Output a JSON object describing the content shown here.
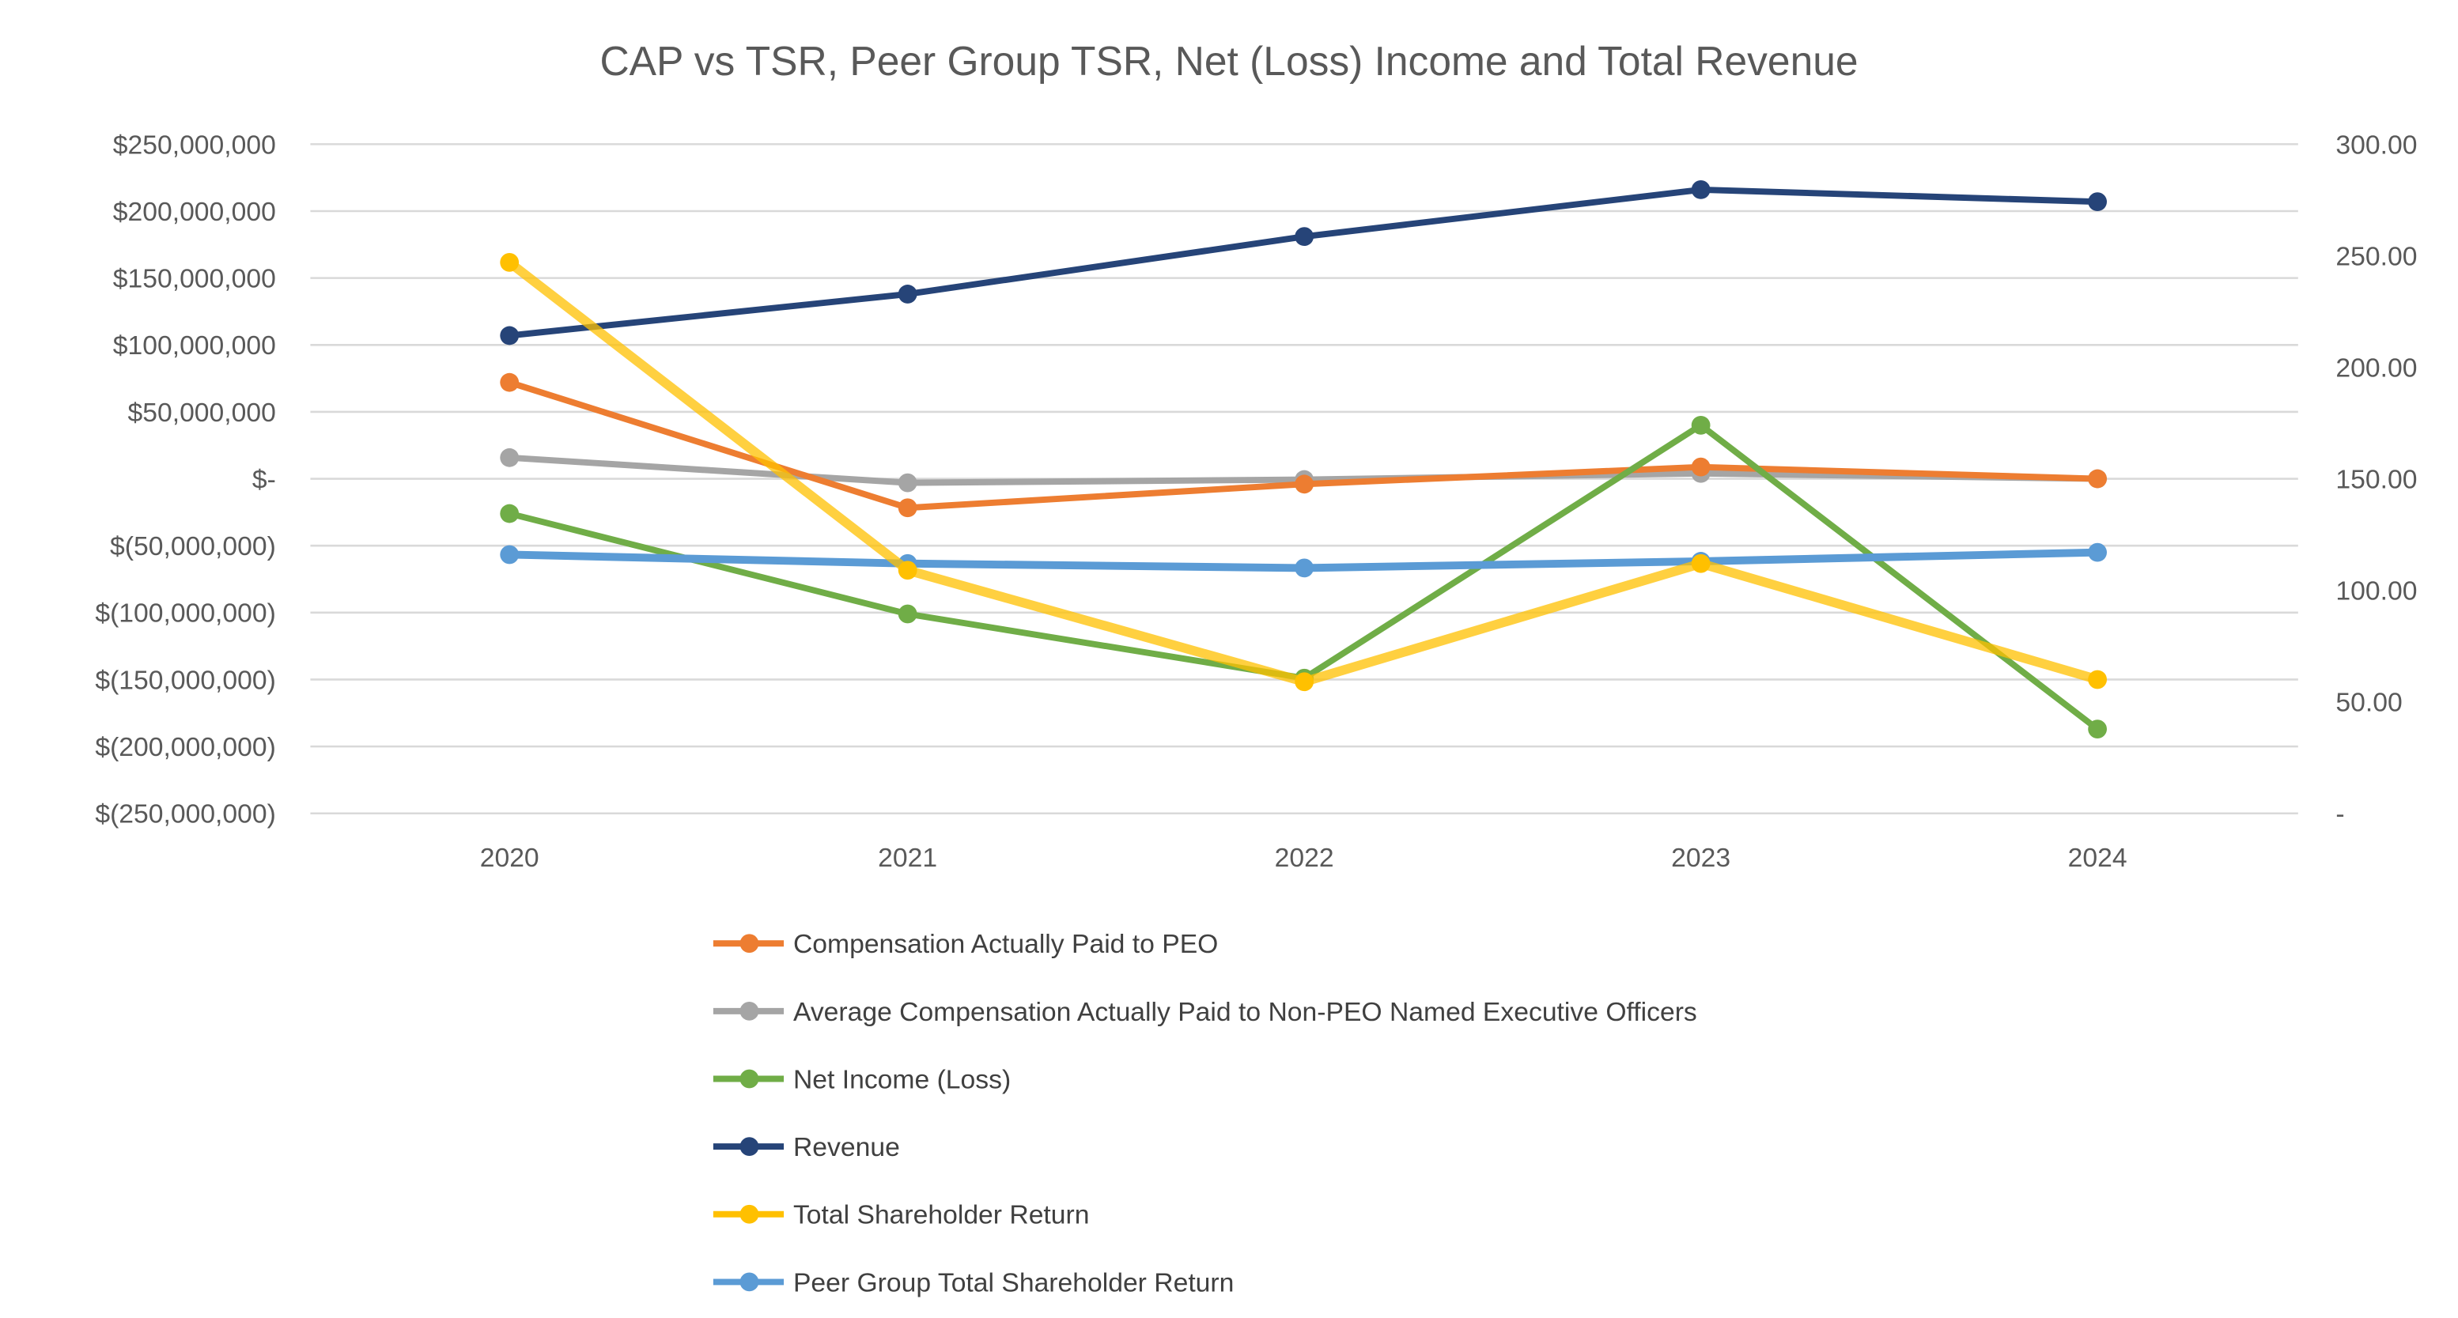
{
  "chart_data": {
    "type": "line",
    "title": "CAP vs TSR, Peer Group TSR, Net (Loss) Income and Total Revenue",
    "categories": [
      "2020",
      "2021",
      "2022",
      "2023",
      "2024"
    ],
    "y_left": {
      "range": [
        -250000000,
        250000000
      ],
      "ticks": [
        250000000,
        200000000,
        150000000,
        100000000,
        50000000,
        0,
        -50000000,
        -100000000,
        -150000000,
        -200000000,
        -250000000
      ],
      "tick_labels": [
        "$250,000,000",
        "$200,000,000",
        "$150,000,000",
        "$100,000,000",
        "$50,000,000",
        "$-",
        "$(50,000,000)",
        "$(100,000,000)",
        "$(150,000,000)",
        "$(200,000,000)",
        "$(250,000,000)"
      ]
    },
    "y_right": {
      "range": [
        0,
        300
      ],
      "ticks": [
        300,
        250,
        200,
        150,
        100,
        50,
        0
      ],
      "tick_labels": [
        "300.00",
        "250.00",
        "200.00",
        "150.00",
        "100.00",
        "50.00",
        "-"
      ]
    },
    "grid": true,
    "legend_position": "bottom",
    "series": [
      {
        "name": "Compensation Actually Paid to PEO",
        "axis": "left",
        "color": "#ED7D31",
        "values": [
          72000000,
          -21700000,
          -4000000,
          8800000,
          0
        ]
      },
      {
        "name": "Average Compensation Actually Paid to Non-PEO Named Executive Officers",
        "axis": "left",
        "color": "#A5A5A5",
        "values": [
          15800000,
          -3000000,
          -600000,
          4000000,
          0
        ]
      },
      {
        "name": "Net Income (Loss)",
        "axis": "left",
        "color": "#70AD47",
        "values": [
          -26000000,
          -101000000,
          -149000000,
          40000000,
          -187000000
        ]
      },
      {
        "name": "Revenue",
        "axis": "left",
        "color": "#264478",
        "values": [
          107000000,
          138000000,
          181000000,
          216000000,
          207000000
        ]
      },
      {
        "name": "Total Shareholder Return",
        "axis": "right",
        "color": "#FFC000",
        "values": [
          247,
          109,
          59,
          112,
          60
        ]
      },
      {
        "name": "Peer Group Total Shareholder Return",
        "axis": "right",
        "color": "#5B9BD5",
        "values": [
          116,
          112,
          110,
          113,
          117
        ]
      }
    ]
  }
}
